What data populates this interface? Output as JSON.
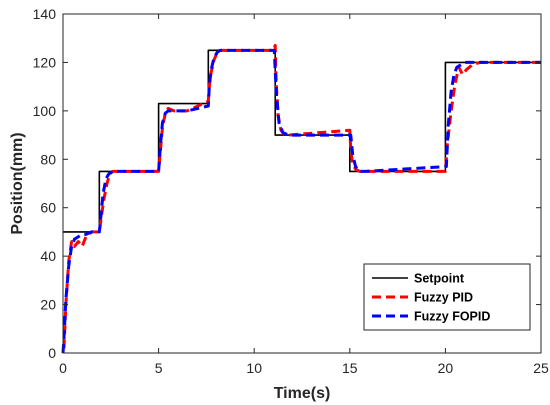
{
  "chart_data": {
    "type": "line",
    "title": "",
    "xlabel": "Time(s)",
    "ylabel": "Position(mm)",
    "xlim": [
      0,
      25
    ],
    "ylim": [
      0,
      140
    ],
    "xticks": [
      0,
      5,
      10,
      15,
      20,
      25
    ],
    "yticks": [
      0,
      20,
      40,
      60,
      80,
      100,
      120,
      140
    ],
    "grid": false,
    "legend_position": "bottom-right",
    "series": [
      {
        "name": "Setpoint",
        "color": "#000000",
        "dash": "solid",
        "x": [
          0,
          1.9,
          1.9,
          5.0,
          5.0,
          7.6,
          7.6,
          11.1,
          11.1,
          15.0,
          15.0,
          20.0,
          20.0,
          25.0
        ],
        "y": [
          50,
          50,
          75,
          75,
          103,
          103,
          125,
          125,
          90,
          90,
          75,
          75,
          120,
          120
        ]
      },
      {
        "name": "Fuzzy PID",
        "color": "#ff0000",
        "dash": "dashed",
        "x": [
          0.05,
          0.15,
          0.3,
          0.45,
          0.6,
          0.8,
          1.0,
          1.2,
          1.5,
          1.9,
          2.0,
          2.15,
          2.3,
          2.45,
          2.6,
          3.0,
          5.0,
          5.1,
          5.2,
          5.35,
          5.5,
          5.8,
          6.5,
          7.6,
          7.65,
          7.75,
          7.9,
          8.05,
          8.2,
          8.4,
          8.8,
          11.0,
          11.1,
          11.15,
          11.25,
          11.4,
          11.6,
          11.8,
          15.0,
          15.05,
          15.15,
          15.3,
          15.5,
          15.8,
          20.0,
          20.1,
          20.3,
          20.5,
          20.7,
          20.9,
          21.1,
          21.4,
          21.8,
          25.0
        ],
        "y": [
          2,
          20,
          38,
          46,
          44,
          46,
          44,
          48,
          50,
          50,
          56,
          64,
          70,
          74,
          75,
          75,
          75,
          84,
          93,
          99,
          101,
          100,
          100,
          104,
          110,
          116,
          121,
          124,
          125,
          125,
          125,
          125,
          127,
          112,
          98,
          92,
          90,
          90,
          92,
          84,
          78,
          76,
          75,
          75,
          75,
          86,
          100,
          111,
          118,
          115,
          117,
          119,
          120,
          120
        ]
      },
      {
        "name": "Fuzzy FOPID",
        "color": "#0000ff",
        "dash": "dashed",
        "x": [
          0.0,
          0.05,
          0.15,
          0.3,
          0.45,
          0.6,
          0.8,
          1.0,
          1.2,
          1.5,
          1.9,
          2.0,
          2.1,
          2.25,
          2.4,
          2.6,
          3.0,
          5.0,
          5.1,
          5.2,
          5.35,
          5.5,
          5.8,
          6.5,
          7.6,
          7.65,
          7.75,
          7.9,
          8.05,
          8.2,
          8.4,
          11.05,
          11.15,
          11.3,
          11.5,
          11.8,
          15.05,
          15.15,
          15.3,
          15.5,
          15.8,
          20.05,
          20.15,
          20.3,
          20.45,
          20.6,
          20.8,
          21.0,
          21.4,
          25.0
        ],
        "y": [
          0,
          6,
          22,
          36,
          44,
          47,
          48,
          49,
          49,
          50,
          50,
          58,
          66,
          72,
          74,
          75,
          75,
          75,
          86,
          95,
          99,
          100,
          100,
          100,
          102,
          110,
          117,
          122,
          124,
          125,
          125,
          125,
          108,
          95,
          91,
          90,
          90,
          82,
          77,
          75,
          75,
          77,
          94,
          108,
          115,
          118,
          119,
          120,
          120,
          120
        ]
      }
    ]
  }
}
